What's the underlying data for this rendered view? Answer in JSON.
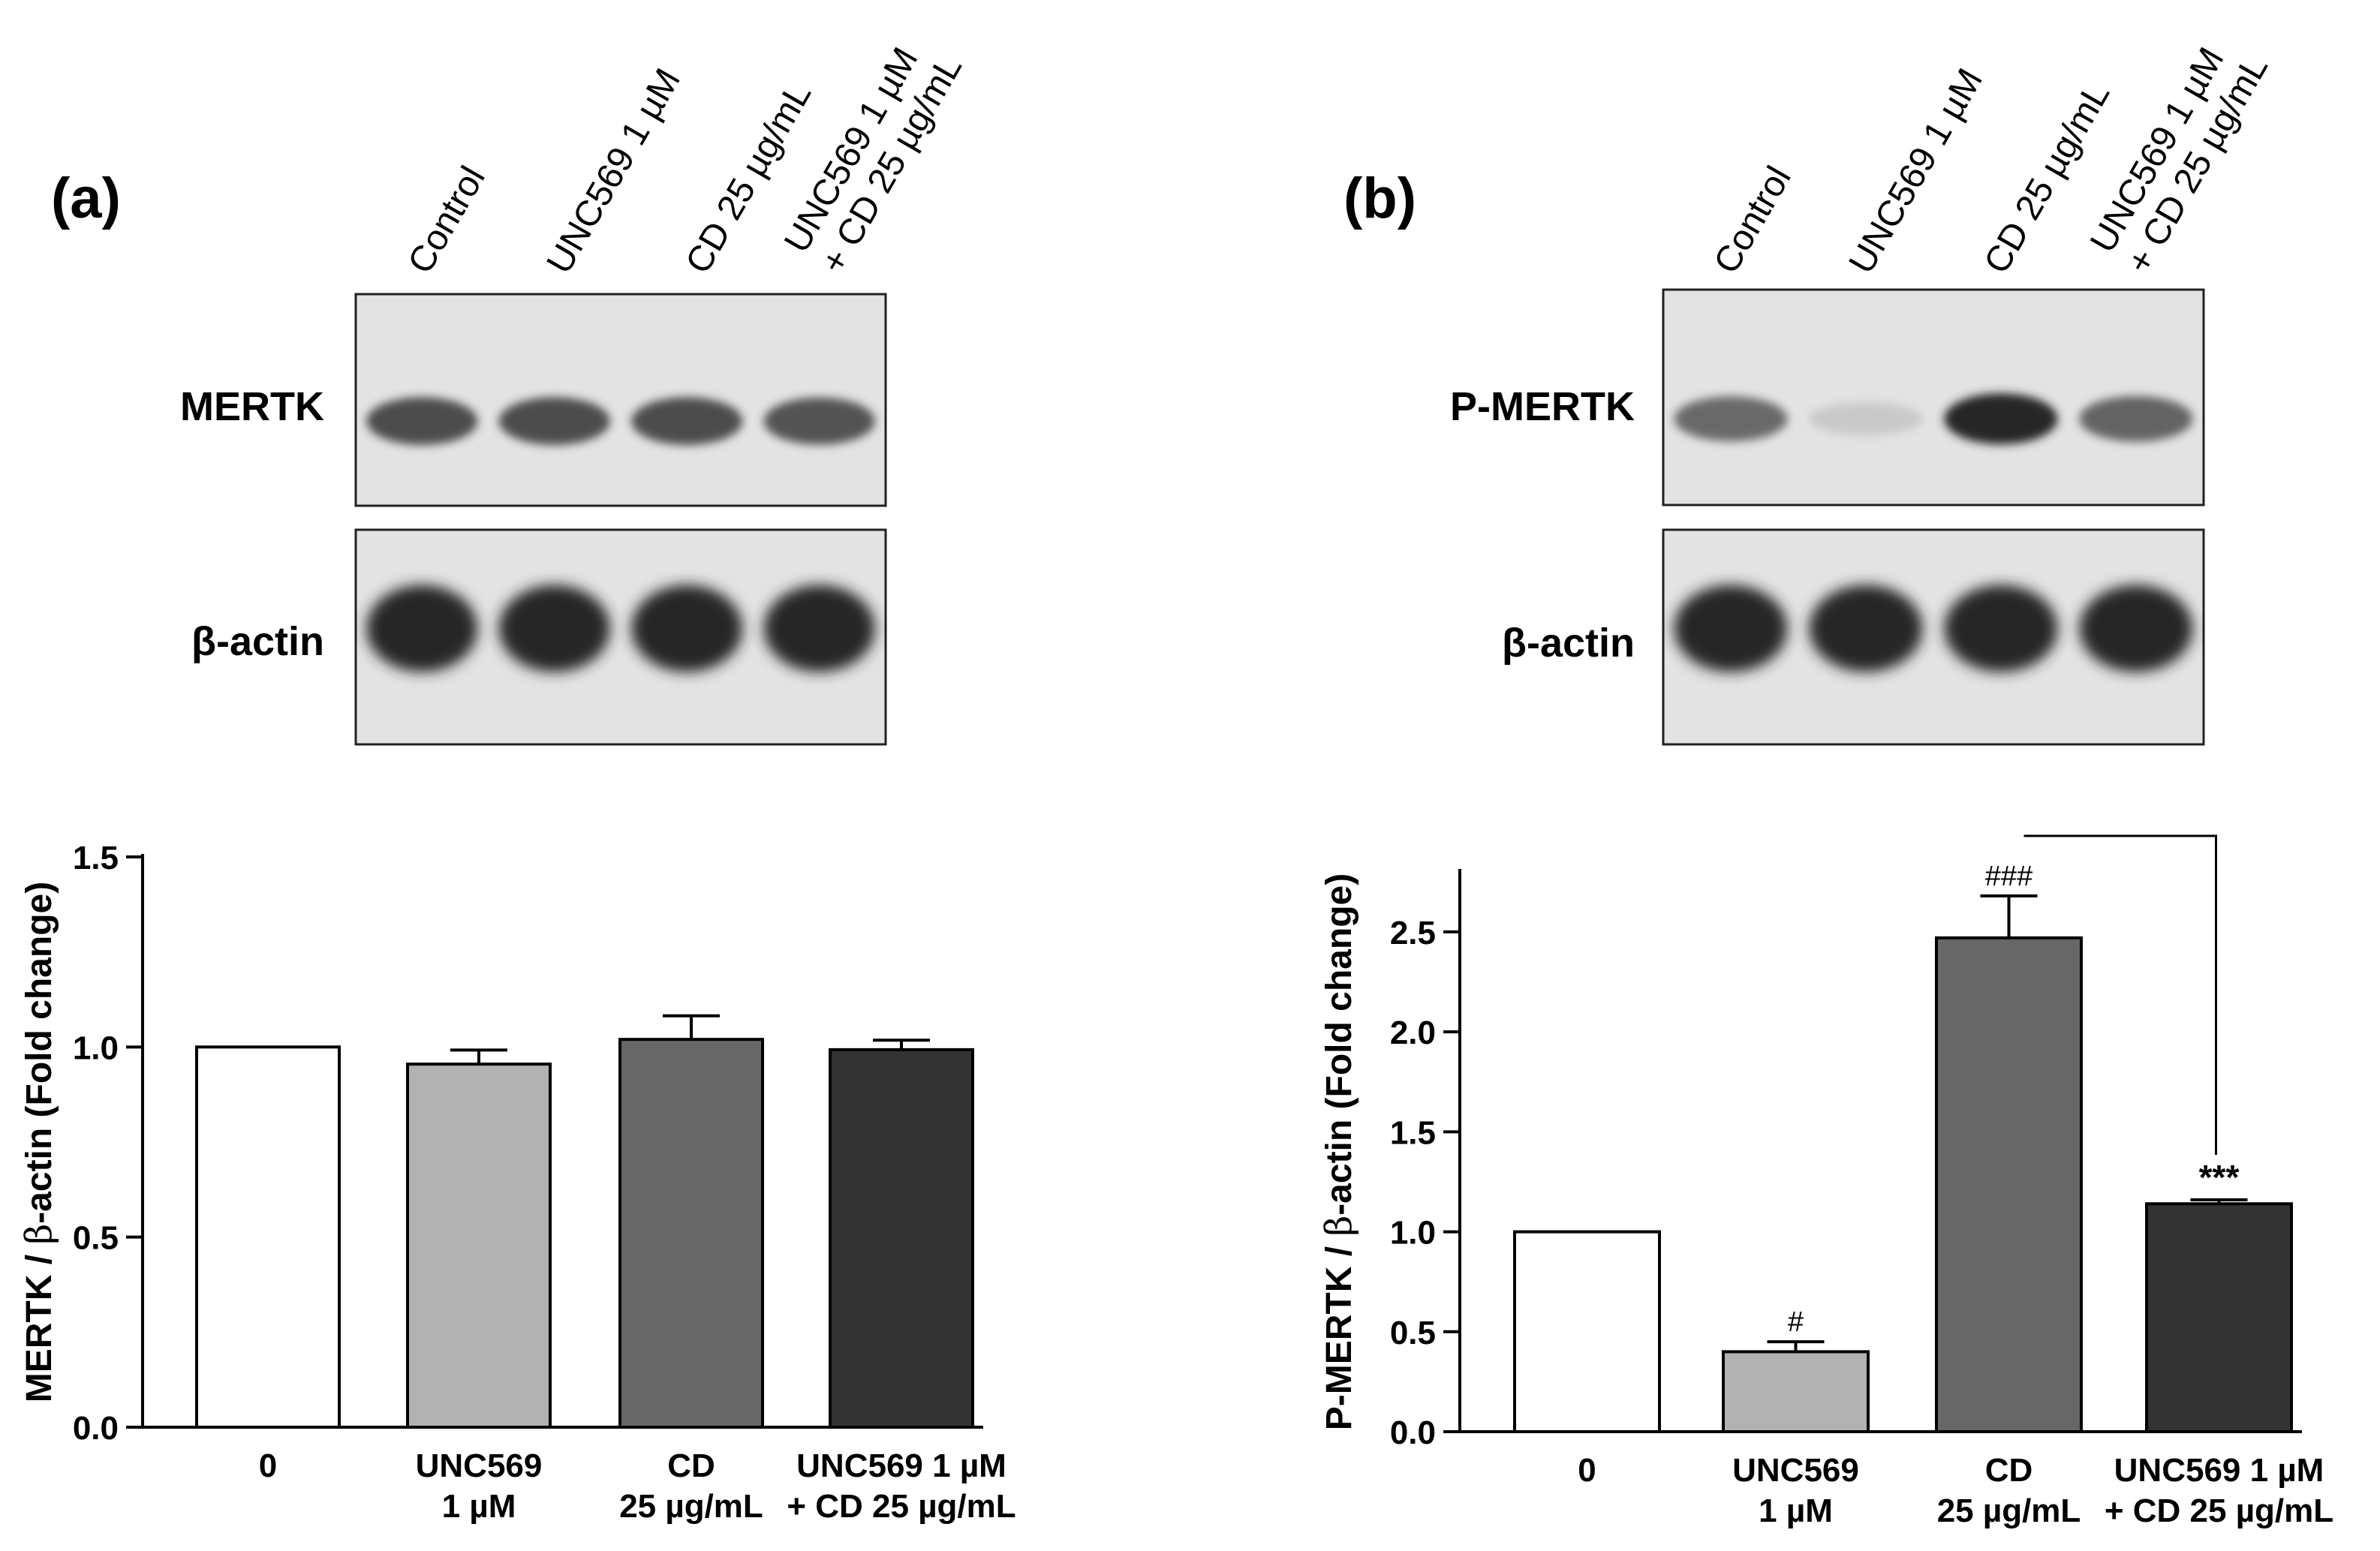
{
  "panels": [
    {
      "id": "a",
      "letter": "(a)",
      "lanes": [
        "Control",
        "UNC569 1 µM",
        "CD 25 µg/mL",
        "UNC569 1 µM|+ CD 25 µg/mL"
      ],
      "blots": [
        {
          "label": "MERTK",
          "intensities": [
            0.85,
            0.85,
            0.85,
            0.82
          ]
        },
        {
          "label": "β-actin",
          "intensities": [
            1,
            1,
            1,
            1
          ]
        }
      ]
    },
    {
      "id": "b",
      "letter": "(b)",
      "lanes": [
        "Control",
        "UNC569 1 µM",
        "CD 25 µg/mL",
        "UNC569 1 µM|+ CD 25 µg/mL"
      ],
      "blots": [
        {
          "label": "P-MERTK",
          "intensities": [
            0.72,
            0.15,
            1.0,
            0.75
          ]
        },
        {
          "label": "β-actin",
          "intensities": [
            1,
            1,
            1,
            1
          ]
        }
      ]
    }
  ],
  "chart_data": [
    {
      "type": "bar",
      "panel": "a",
      "categories": [
        "0",
        "UNC569|1 µM",
        "CD|25 µg/mL",
        "UNC569 1 µM|+ CD 25 µg/mL"
      ],
      "values": [
        1.0,
        0.955,
        1.02,
        0.993
      ],
      "errors": [
        0,
        0.037,
        0.062,
        0.025
      ],
      "annotations": [
        "",
        "",
        "",
        ""
      ],
      "colors": [
        "#ffffff",
        "#b2b2b2",
        "#676767",
        "#333333"
      ],
      "ylabel_prefix": "MERTK / ",
      "ylabel_beta": "β",
      "ylabel_suffix": "-actin (Fold change)",
      "ylim": [
        0,
        1.5
      ],
      "yticks": [
        "0.0",
        "0.5",
        "1.0",
        "1.5"
      ]
    },
    {
      "type": "bar",
      "panel": "b",
      "categories": [
        "0",
        "UNC569|1 µM",
        "CD|25 µg/mL",
        "UNC569 1 µM|+ CD 25 µg/mL"
      ],
      "values": [
        1.0,
        0.4,
        2.47,
        1.14
      ],
      "errors": [
        0,
        0.05,
        0.21,
        0.02
      ],
      "annotations": [
        "",
        "#",
        "###",
        "***"
      ],
      "colors": [
        "#ffffff",
        "#b2b2b2",
        "#676767",
        "#333333"
      ],
      "ylabel_prefix": "P-MERTK / ",
      "ylabel_beta": "β",
      "ylabel_suffix": "-actin (Fold change)",
      "ylim": [
        0,
        2.8
      ],
      "yticks": [
        "0.0",
        "0.5",
        "1.0",
        "1.5",
        "2.0",
        "2.5"
      ],
      "comparison": {
        "from": 2,
        "to": 3
      }
    }
  ]
}
